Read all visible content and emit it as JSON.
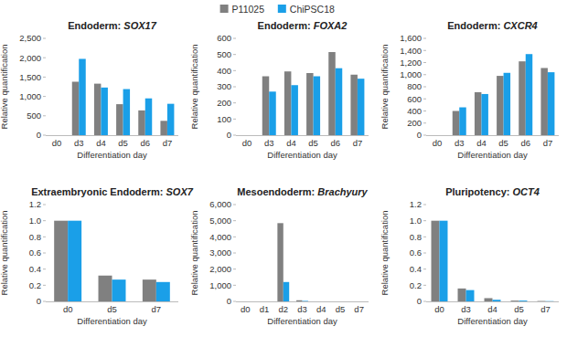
{
  "chart_data": [
    {
      "type": "bar",
      "title": "Endoderm: SOX17",
      "x_label": "Differentiation day",
      "y_label": "Relative quantification",
      "categories": [
        "d0",
        "d3",
        "d4",
        "d5",
        "d6",
        "d7"
      ],
      "series": [
        {
          "name": "P11025",
          "color": "#808080",
          "values": [
            0,
            1380,
            1330,
            800,
            640,
            370
          ]
        },
        {
          "name": "ChiPSC18",
          "color": "#1a9fe8",
          "values": [
            0,
            1970,
            1230,
            1190,
            950,
            810
          ]
        }
      ],
      "ylim": [
        0,
        2500
      ],
      "yticks": [
        0,
        500,
        {
          "value": 1000,
          "label": "1,000"
        },
        {
          "value": 1500,
          "label": "1,500"
        },
        {
          "value": 2000,
          "label": "2,000"
        },
        {
          "value": 2500,
          "label": "2,500"
        }
      ],
      "grid": false,
      "legend": "top"
    },
    {
      "type": "bar",
      "title": "Endoderm: FOXA2",
      "x_label": "Differentiation day",
      "y_label": "Relative quantification",
      "categories": [
        "d0",
        "d3",
        "d4",
        "d5",
        "d6",
        "d7"
      ],
      "series": [
        {
          "name": "P11025",
          "color": "#808080",
          "values": [
            0,
            365,
            395,
            385,
            515,
            375
          ]
        },
        {
          "name": "ChiPSC18",
          "color": "#1a9fe8",
          "values": [
            0,
            270,
            310,
            365,
            415,
            350
          ]
        }
      ],
      "ylim": [
        0,
        600
      ],
      "yticks": [
        0,
        100,
        200,
        300,
        400,
        500,
        600
      ],
      "grid": false
    },
    {
      "type": "bar",
      "title": "Endoderm: CXCR4",
      "x_label": "Differentiation day",
      "y_label": "Relative quantification",
      "categories": [
        "d0",
        "d3",
        "d4",
        "d5",
        "d6",
        "d7"
      ],
      "series": [
        {
          "name": "P11025",
          "color": "#808080",
          "values": [
            0,
            400,
            710,
            980,
            1220,
            1110
          ]
        },
        {
          "name": "ChiPSC18",
          "color": "#1a9fe8",
          "values": [
            0,
            460,
            680,
            1030,
            1340,
            1040
          ]
        }
      ],
      "ylim": [
        0,
        1600
      ],
      "yticks": [
        0,
        200,
        400,
        600,
        800,
        {
          "value": 1000,
          "label": "1,000"
        },
        {
          "value": 1200,
          "label": "1,200"
        },
        {
          "value": 1400,
          "label": "1,400"
        },
        {
          "value": 1600,
          "label": "1,600"
        }
      ],
      "grid": false
    },
    {
      "type": "bar",
      "title": "Extraembryonic Endoderm: SOX7",
      "x_label": "Differentiation day",
      "y_label": "Relative quantification",
      "categories": [
        "d0",
        "d5",
        "d7"
      ],
      "series": [
        {
          "name": "P11025",
          "color": "#808080",
          "values": [
            1.0,
            0.32,
            0.27
          ]
        },
        {
          "name": "ChiPSC18",
          "color": "#1a9fe8",
          "values": [
            1.0,
            0.27,
            0.24
          ]
        }
      ],
      "ylim": [
        0,
        1.2
      ],
      "yticks": [
        0,
        0.2,
        0.4,
        0.6,
        0.8,
        {
          "value": 1,
          "label": "1.0"
        },
        1.2
      ],
      "grid": false
    },
    {
      "type": "bar",
      "title": "Mesoendoderm: Brachyury",
      "x_label": "Differentiation day",
      "y_label": "Relative quantification",
      "categories": [
        "d0",
        "d1",
        "d2",
        "d3",
        "d4",
        "d5",
        "d7"
      ],
      "series": [
        {
          "name": "P11025",
          "color": "#808080",
          "values": [
            0,
            0,
            4850,
            70,
            0,
            0,
            0
          ]
        },
        {
          "name": "ChiPSC18",
          "color": "#1a9fe8",
          "values": [
            0,
            0,
            1200,
            30,
            0,
            0,
            0
          ]
        }
      ],
      "ylim": [
        0,
        6000
      ],
      "yticks": [
        0,
        {
          "value": 1000,
          "label": "1,000"
        },
        {
          "value": 2000,
          "label": "2,000"
        },
        {
          "value": 3000,
          "label": "3,000"
        },
        {
          "value": 4000,
          "label": "4,000"
        },
        {
          "value": 5000,
          "label": "5,000"
        },
        {
          "value": 6000,
          "label": "6,000"
        }
      ],
      "grid": false
    },
    {
      "type": "bar",
      "title": "Pluripotency: OCT4",
      "x_label": "Differentiation day",
      "y_label": "Relative quantification",
      "categories": [
        "d0",
        "d3",
        "d4",
        "d5",
        "d7"
      ],
      "series": [
        {
          "name": "P11025",
          "color": "#808080",
          "values": [
            1.0,
            0.16,
            0.04,
            0.01,
            0.005
          ]
        },
        {
          "name": "ChiPSC18",
          "color": "#1a9fe8",
          "values": [
            1.0,
            0.14,
            0.02,
            0.01,
            0.003
          ]
        }
      ],
      "ylim": [
        0,
        1.2
      ],
      "yticks": [
        0,
        0.2,
        0.4,
        0.6,
        0.8,
        {
          "value": 1,
          "label": "1.0"
        },
        1.2
      ],
      "grid": false
    }
  ]
}
